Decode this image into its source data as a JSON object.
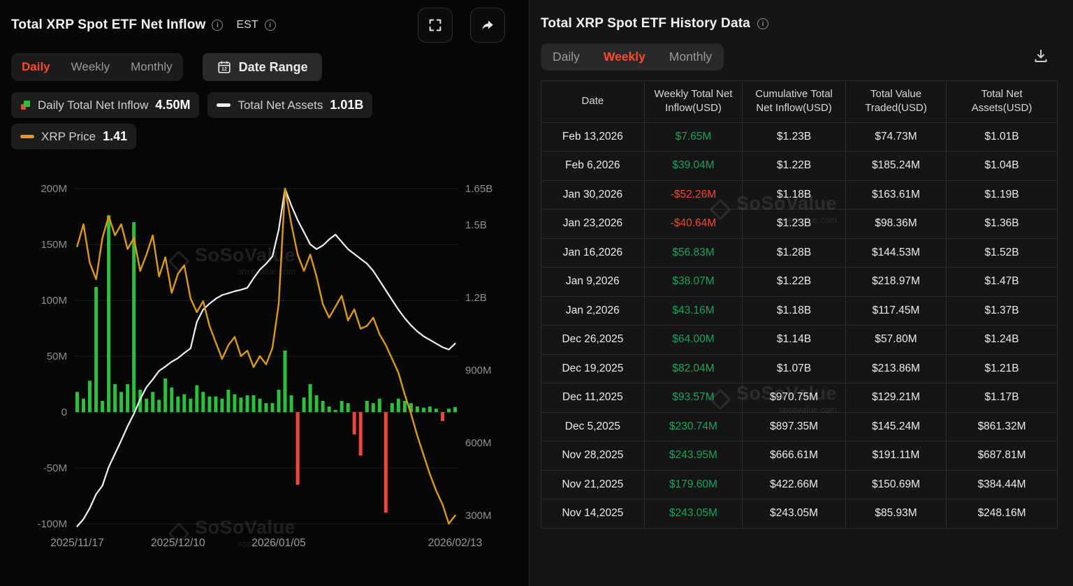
{
  "left_panel": {
    "title": "Total XRP Spot ETF Net Inflow",
    "timezone_label": "EST",
    "tabs": [
      "Daily",
      "Weekly",
      "Monthly"
    ],
    "active_tab": "Daily",
    "date_range_label": "Date Range",
    "legend": [
      {
        "label": "Daily Total Net Inflow",
        "value": "4.50M"
      },
      {
        "label": "Total Net Assets",
        "value": "1.01B"
      },
      {
        "label": "XRP Price",
        "value": "1.41"
      }
    ]
  },
  "chart_data": {
    "type": "combo-bar-line",
    "bar_series": "Daily Total Net Inflow (USD millions, left axis)",
    "line_series": [
      "Total Net Assets (USD millions, right axis)",
      "XRP Price (USD, hidden axis)"
    ],
    "grid": true,
    "left_axis_ticks": [
      [
        200,
        "200M"
      ],
      [
        150,
        "150M"
      ],
      [
        100,
        "100M"
      ],
      [
        50,
        "50M"
      ],
      [
        0,
        "0"
      ],
      [
        -50,
        "-50M"
      ],
      [
        -100,
        "-100M"
      ]
    ],
    "left_axis_range_M": [
      -100,
      200
    ],
    "right_axis_ticks": [
      [
        1650,
        "1.65B"
      ],
      [
        1500,
        "1.5B"
      ],
      [
        1200,
        "1.2B"
      ],
      [
        900,
        "900M"
      ],
      [
        600,
        "600M"
      ],
      [
        300,
        "300M"
      ]
    ],
    "x_axis_labels": [
      {
        "index": 0,
        "label": "2025/11/17"
      },
      {
        "index": 16,
        "label": "2025/12/10"
      },
      {
        "index": 32,
        "label": "2026/01/05"
      },
      {
        "index": 60,
        "label": "2026/02/13"
      }
    ],
    "dates": [
      "2025-11-17",
      "2025-11-18",
      "2025-11-19",
      "2025-11-20",
      "2025-11-21",
      "2025-11-24",
      "2025-11-25",
      "2025-11-26",
      "2025-11-28",
      "2025-12-01",
      "2025-12-02",
      "2025-12-03",
      "2025-12-04",
      "2025-12-05",
      "2025-12-08",
      "2025-12-09",
      "2025-12-10",
      "2025-12-11",
      "2025-12-12",
      "2025-12-15",
      "2025-12-16",
      "2025-12-17",
      "2025-12-18",
      "2025-12-19",
      "2025-12-22",
      "2025-12-23",
      "2025-12-24",
      "2025-12-26",
      "2025-12-29",
      "2025-12-30",
      "2025-12-31",
      "2026-01-02",
      "2026-01-05",
      "2026-01-06",
      "2026-01-07",
      "2026-01-08",
      "2026-01-09",
      "2026-01-12",
      "2026-01-13",
      "2026-01-14",
      "2026-01-15",
      "2026-01-16",
      "2026-01-20",
      "2026-01-21",
      "2026-01-22",
      "2026-01-23",
      "2026-01-26",
      "2026-01-27",
      "2026-01-28",
      "2026-01-29",
      "2026-01-30",
      "2026-02-02",
      "2026-02-03",
      "2026-02-04",
      "2026-02-05",
      "2026-02-06",
      "2026-02-09",
      "2026-02-10",
      "2026-02-11",
      "2026-02-12",
      "2026-02-13"
    ],
    "daily_net_inflow_M": [
      18,
      12,
      28,
      112,
      10,
      176,
      25,
      18,
      25,
      170,
      20,
      12,
      18,
      11,
      30,
      22,
      14,
      16,
      12,
      24,
      18,
      14,
      14,
      12,
      20,
      16,
      13,
      15,
      15,
      12,
      8,
      8,
      20,
      55,
      15,
      -65,
      13,
      25,
      15,
      10,
      5,
      2,
      10,
      8,
      -20,
      -39,
      10,
      8,
      12,
      -90,
      8,
      12,
      10,
      8,
      5,
      4,
      5,
      3,
      -8,
      3,
      4.5
    ],
    "total_net_assets_M": [
      255,
      285,
      330,
      388,
      423,
      500,
      555,
      610,
      668,
      720,
      780,
      830,
      862,
      897,
      915,
      935,
      950,
      971,
      990,
      1100,
      1150,
      1175,
      1195,
      1210,
      1218,
      1226,
      1232,
      1240,
      1280,
      1315,
      1340,
      1370,
      1480,
      1650,
      1580,
      1520,
      1470,
      1420,
      1400,
      1415,
      1440,
      1460,
      1430,
      1400,
      1380,
      1360,
      1340,
      1310,
      1270,
      1230,
      1190,
      1150,
      1115,
      1085,
      1060,
      1040,
      1025,
      1010,
      995,
      985,
      1010
    ],
    "xrp_price_usd": [
      2.39,
      2.47,
      2.33,
      2.27,
      2.42,
      2.5,
      2.43,
      2.47,
      2.38,
      2.42,
      2.3,
      2.36,
      2.43,
      2.28,
      2.35,
      2.22,
      2.29,
      2.32,
      2.2,
      2.15,
      2.19,
      2.1,
      2.04,
      1.98,
      2.03,
      2.06,
      1.99,
      2.01,
      1.95,
      1.99,
      1.96,
      2.02,
      2.18,
      2.6,
      2.47,
      2.36,
      2.3,
      2.36,
      2.28,
      2.18,
      2.13,
      2.17,
      2.21,
      2.12,
      2.16,
      2.09,
      2.1,
      2.13,
      2.07,
      2.03,
      1.98,
      1.93,
      1.85,
      1.78,
      1.7,
      1.63,
      1.56,
      1.5,
      1.45,
      1.38,
      1.41
    ],
    "colors": {
      "inflow_positive": "#2bc13e",
      "inflow_negative": "#f4453c",
      "assets_line": "#f2f2f2",
      "price_line": "#dc9a16",
      "accent": "#ff4b27"
    }
  },
  "right_panel": {
    "title": "Total XRP Spot ETF History Data",
    "tabs": [
      "Daily",
      "Weekly",
      "Monthly"
    ],
    "active_tab": "Weekly",
    "table": {
      "headers": [
        "Date",
        "Weekly Total Net Inflow(USD)",
        "Cumulative Total Net Inflow(USD)",
        "Total Value Traded(USD)",
        "Total Net Assets(USD)"
      ],
      "rows": [
        {
          "date": "Feb 13,2026",
          "weekly_inflow": "$7.65M",
          "sign": "pos",
          "cumulative": "$1.23B",
          "value_traded": "$74.73M",
          "net_assets": "$1.01B"
        },
        {
          "date": "Feb 6,2026",
          "weekly_inflow": "$39.04M",
          "sign": "pos",
          "cumulative": "$1.22B",
          "value_traded": "$185.24M",
          "net_assets": "$1.04B"
        },
        {
          "date": "Jan 30,2026",
          "weekly_inflow": "-$52.26M",
          "sign": "neg",
          "cumulative": "$1.18B",
          "value_traded": "$163.61M",
          "net_assets": "$1.19B"
        },
        {
          "date": "Jan 23,2026",
          "weekly_inflow": "-$40.64M",
          "sign": "neg",
          "cumulative": "$1.23B",
          "value_traded": "$98.36M",
          "net_assets": "$1.36B"
        },
        {
          "date": "Jan 16,2026",
          "weekly_inflow": "$56.83M",
          "sign": "pos",
          "cumulative": "$1.28B",
          "value_traded": "$144.53M",
          "net_assets": "$1.52B"
        },
        {
          "date": "Jan 9,2026",
          "weekly_inflow": "$38.07M",
          "sign": "pos",
          "cumulative": "$1.22B",
          "value_traded": "$218.97M",
          "net_assets": "$1.47B"
        },
        {
          "date": "Jan 2,2026",
          "weekly_inflow": "$43.16M",
          "sign": "pos",
          "cumulative": "$1.18B",
          "value_traded": "$117.45M",
          "net_assets": "$1.37B"
        },
        {
          "date": "Dec 26,2025",
          "weekly_inflow": "$64.00M",
          "sign": "pos",
          "cumulative": "$1.14B",
          "value_traded": "$57.80M",
          "net_assets": "$1.24B"
        },
        {
          "date": "Dec 19,2025",
          "weekly_inflow": "$82.04M",
          "sign": "pos",
          "cumulative": "$1.07B",
          "value_traded": "$213.86M",
          "net_assets": "$1.21B"
        },
        {
          "date": "Dec 11,2025",
          "weekly_inflow": "$93.57M",
          "sign": "pos",
          "cumulative": "$970.75M",
          "value_traded": "$129.21M",
          "net_assets": "$1.17B"
        },
        {
          "date": "Dec 5,2025",
          "weekly_inflow": "$230.74M",
          "sign": "pos",
          "cumulative": "$897.35M",
          "value_traded": "$145.24M",
          "net_assets": "$861.32M"
        },
        {
          "date": "Nov 28,2025",
          "weekly_inflow": "$243.95M",
          "sign": "pos",
          "cumulative": "$666.61M",
          "value_traded": "$191.11M",
          "net_assets": "$687.81M"
        },
        {
          "date": "Nov 21,2025",
          "weekly_inflow": "$179.60M",
          "sign": "pos",
          "cumulative": "$422.66M",
          "value_traded": "$150.69M",
          "net_assets": "$384.44M"
        },
        {
          "date": "Nov 14,2025",
          "weekly_inflow": "$243.05M",
          "sign": "pos",
          "cumulative": "$243.05M",
          "value_traded": "$85.93M",
          "net_assets": "$248.16M"
        }
      ]
    }
  },
  "watermark": {
    "text": "SoSoValue",
    "subtext": "sosovalue.com"
  }
}
